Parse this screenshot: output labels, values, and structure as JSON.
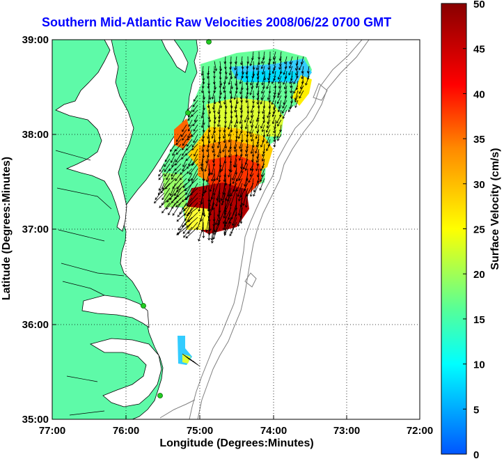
{
  "title": "Southern Mid-Atlantic Raw Velocities 2008/06/22 0700 GMT",
  "x_axis": {
    "label": "Longitude (Degrees:Minutes)",
    "ticks": [
      "77:00",
      "76:00",
      "75:00",
      "74:00",
      "73:00",
      "72:00"
    ]
  },
  "y_axis": {
    "label": "Latitude (Degrees:Minutes)",
    "ticks": [
      "39:00",
      "38:00",
      "37:00",
      "36:00",
      "35:00"
    ]
  },
  "colorbar": {
    "label": "Surface Velocity (cm/s)",
    "ticks": [
      "50",
      "45",
      "40",
      "35",
      "30",
      "25",
      "20",
      "15",
      "10",
      "5",
      "0"
    ],
    "colors": [
      "#0033ff",
      "#00ffff",
      "#55ff99",
      "#ffff00",
      "#ff8800",
      "#ff0000",
      "#880000"
    ]
  },
  "colors": {
    "land": "#5efaa8",
    "title": "#0000ff",
    "vectors": "#000000",
    "bathymetry": "#808080",
    "stations": "#22cc22"
  }
}
